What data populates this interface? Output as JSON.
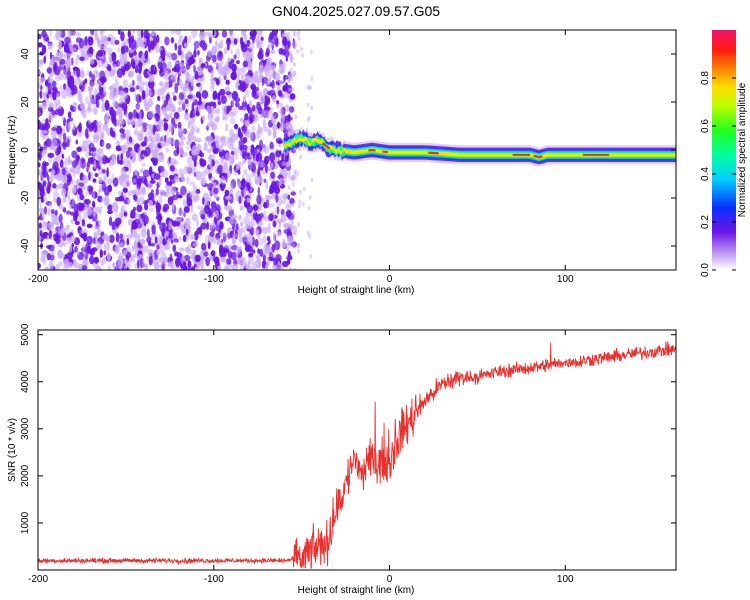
{
  "title": "GN04.2025.027.09.57.G05",
  "colors": {
    "snr_line": "#e8302c",
    "ridge": "#e8302c",
    "speckle_dark": "#6a16e6",
    "speckle_light": "#c9a8f5"
  },
  "chart_data": [
    {
      "type": "heatmap",
      "xlabel": "Height of straight line (km)",
      "ylabel": "Frequency (Hz)",
      "xlim": [
        -200,
        163
      ],
      "ylim": [
        -50,
        50
      ],
      "xticks": [
        -200,
        -100,
        0,
        100
      ],
      "yticks": [
        -40,
        -20,
        0,
        20,
        40
      ],
      "colorbar": {
        "label": "Normalized spectral amplitude",
        "range": [
          0,
          1
        ],
        "ticks": [
          "0.0",
          "0.2",
          "0.4",
          "0.6",
          "0.8"
        ],
        "colormap": "rainbow (violet to red to magenta)"
      },
      "noise_region_x": [
        -200,
        -58
      ],
      "ridge": {
        "x": [
          -60,
          -50,
          -45,
          -40,
          -35,
          -30,
          -20,
          -10,
          0,
          20,
          40,
          60,
          80,
          85,
          90,
          100,
          120,
          140,
          163
        ],
        "freq": [
          2,
          5,
          3,
          4,
          1,
          0,
          -1,
          0,
          -1,
          -1,
          -2,
          -2,
          -2,
          -3,
          -2,
          -2,
          -2,
          -2,
          -2
        ]
      },
      "grid": false
    },
    {
      "type": "line",
      "xlabel": "Height of straight line (km)",
      "ylabel": "SNR (10 * v/v)",
      "xlim": [
        -200,
        163
      ],
      "ylim": [
        0,
        5100
      ],
      "xticks": [
        -200,
        -100,
        0,
        100
      ],
      "yticks": [
        1000,
        2000,
        3000,
        4000,
        5000
      ],
      "series": [
        {
          "x": [
            -200,
            -150,
            -100,
            -60,
            -50,
            -45,
            -40,
            -35,
            -30,
            -25,
            -20,
            -15,
            -10,
            -5,
            0,
            5,
            10,
            20,
            30,
            40,
            50,
            60,
            80,
            100,
            120,
            140,
            163
          ],
          "values": [
            200,
            200,
            200,
            200,
            250,
            400,
            500,
            600,
            1300,
            1800,
            2400,
            2000,
            2400,
            2300,
            2300,
            2800,
            3100,
            3600,
            3950,
            4100,
            4100,
            4200,
            4300,
            4400,
            4500,
            4600,
            4700
          ]
        }
      ],
      "grid": false
    }
  ]
}
